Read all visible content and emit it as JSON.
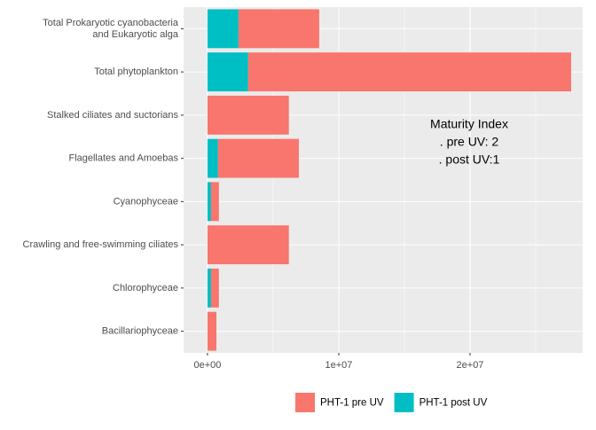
{
  "chart_data": {
    "type": "bar",
    "orientation": "horizontal",
    "stacked": true,
    "categories": [
      "Total Prokaryotic cyanobacteria\nand Eukaryotic alga",
      "Total phytoplankton",
      "Stalked ciliates and suctorians",
      "Flagellates and Amoebas",
      "Cyanophyceae",
      "Crawling and free-swimming ciliates",
      "Chlorophyceae",
      "Bacillariophyceae"
    ],
    "series": [
      {
        "name": "PHT-1 post UV",
        "color": "#00BFC4",
        "values": [
          2360000,
          3100000,
          0,
          800000,
          270000,
          0,
          270000,
          0
        ]
      },
      {
        "name": "PHT-1 pre UV",
        "color": "#F8766D",
        "values": [
          6150000,
          24600000,
          6200000,
          6160000,
          600000,
          6200000,
          600000,
          680000
        ]
      }
    ],
    "legend_order": [
      1,
      0
    ],
    "xlim": [
      -1820000,
      28580000
    ],
    "xticks": [
      {
        "value": 0,
        "label": "0e+00"
      },
      {
        "value": 10000000,
        "label": "1e+07"
      },
      {
        "value": 20000000,
        "label": "2e+07"
      }
    ],
    "minor_xticks": [
      5000000,
      15000000,
      25000000
    ],
    "grid": true,
    "legend": "bottom",
    "annotation": [
      "Maturity Index",
      ". pre UV: 2",
      ". post UV:1"
    ]
  }
}
